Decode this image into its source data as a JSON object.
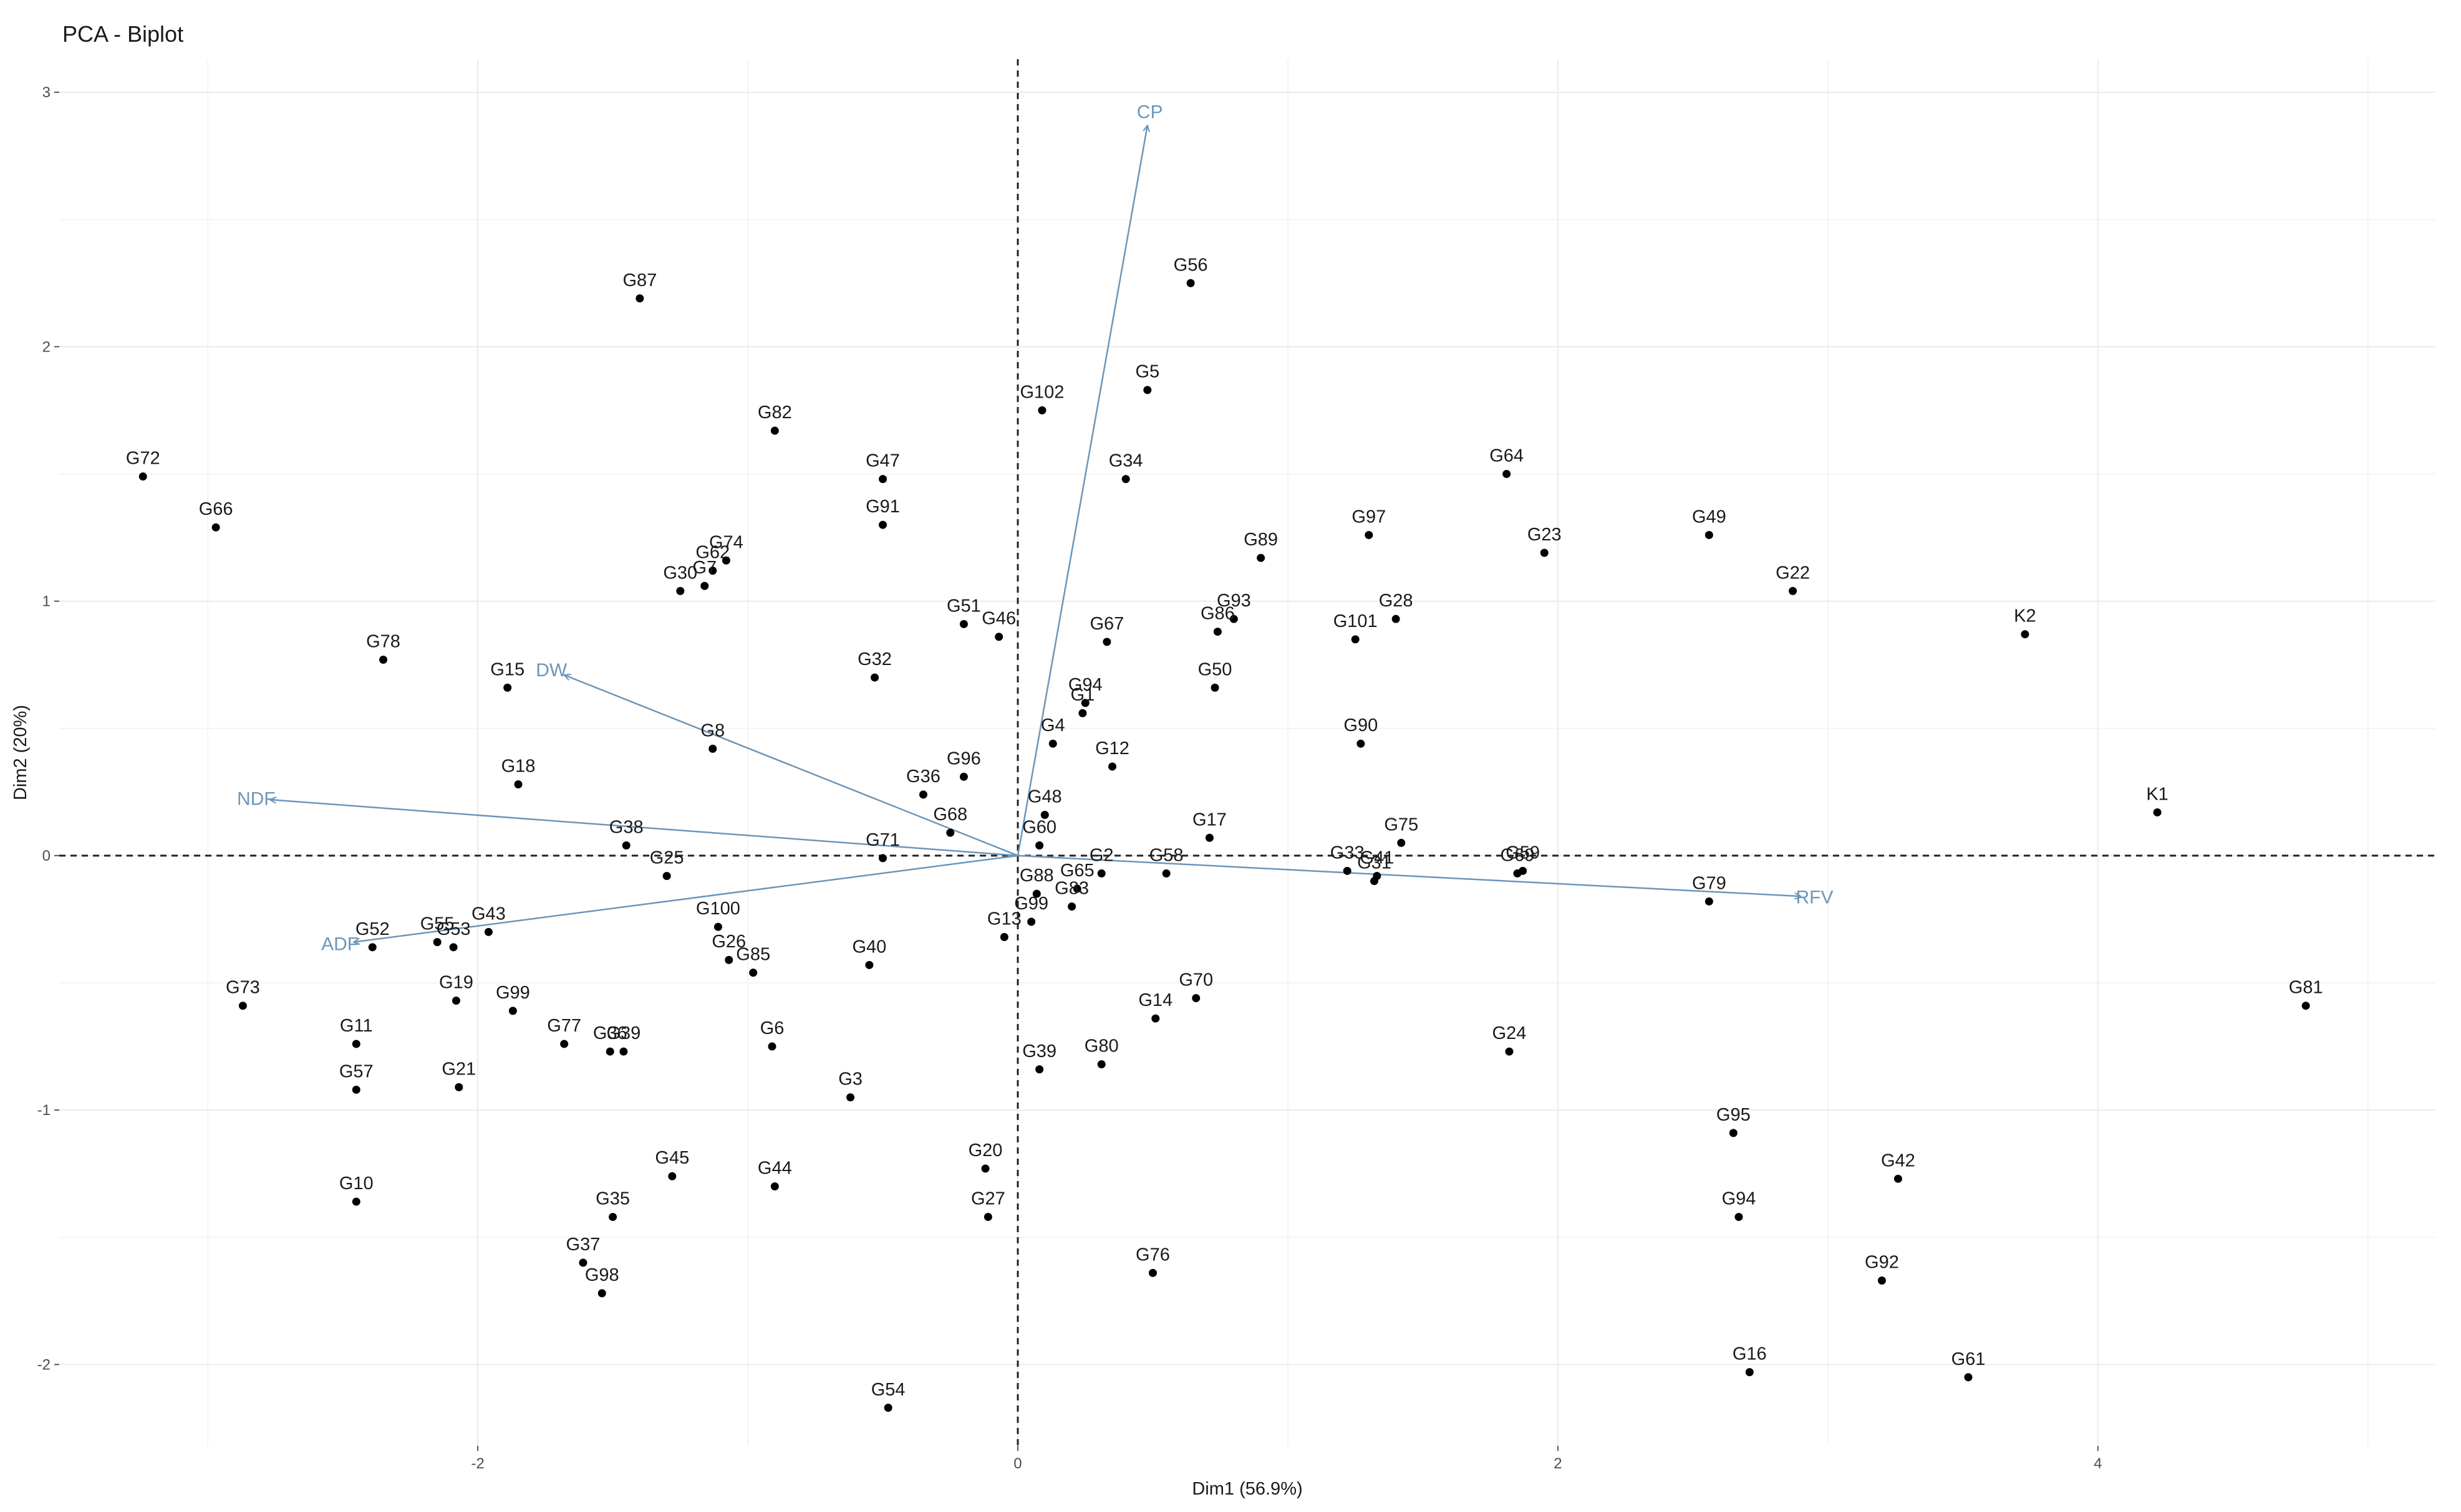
{
  "chart_data": {
    "type": "scatter",
    "title": "PCA - Biplot",
    "xlabel": "Dim1 (56.9%)",
    "ylabel": "Dim2 (20%)",
    "xlim": [
      -3.55,
      5.25
    ],
    "ylim": [
      -2.32,
      3.13
    ],
    "xticks": [
      -2,
      0,
      2,
      4
    ],
    "yticks": [
      -2,
      -1,
      0,
      1,
      2,
      3
    ],
    "grid": true,
    "reference_lines": {
      "x": 0,
      "y": 0,
      "style": "dashed"
    },
    "colors": {
      "points": "#000000",
      "arrows": "#6b96ba",
      "grid": "#ebebeb"
    },
    "points": [
      {
        "label": "G87",
        "x": -1.4,
        "y": 2.19
      },
      {
        "label": "G56",
        "x": 0.64,
        "y": 2.25
      },
      {
        "label": "G102",
        "x": 0.09,
        "y": 1.75
      },
      {
        "label": "G5",
        "x": 0.48,
        "y": 1.83
      },
      {
        "label": "G82",
        "x": -0.9,
        "y": 1.67
      },
      {
        "label": "G72",
        "x": -3.24,
        "y": 1.49
      },
      {
        "label": "G47",
        "x": -0.5,
        "y": 1.48
      },
      {
        "label": "G34",
        "x": 0.4,
        "y": 1.48
      },
      {
        "label": "G64",
        "x": 1.81,
        "y": 1.5
      },
      {
        "label": "G66",
        "x": -2.97,
        "y": 1.29
      },
      {
        "label": "G91",
        "x": -0.5,
        "y": 1.3
      },
      {
        "label": "G97",
        "x": 1.3,
        "y": 1.26
      },
      {
        "label": "G49",
        "x": 2.56,
        "y": 1.26
      },
      {
        "label": "G89",
        "x": 0.9,
        "y": 1.17
      },
      {
        "label": "G23",
        "x": 1.95,
        "y": 1.19
      },
      {
        "label": "G74",
        "x": -1.08,
        "y": 1.16
      },
      {
        "label": "G62",
        "x": -1.13,
        "y": 1.12
      },
      {
        "label": "G7",
        "x": -1.16,
        "y": 1.06
      },
      {
        "label": "G30",
        "x": -1.25,
        "y": 1.04
      },
      {
        "label": "G22",
        "x": 2.87,
        "y": 1.04
      },
      {
        "label": "G93",
        "x": 0.8,
        "y": 0.93
      },
      {
        "label": "G28",
        "x": 1.4,
        "y": 0.93
      },
      {
        "label": "G86",
        "x": 0.74,
        "y": 0.88
      },
      {
        "label": "G101",
        "x": 1.25,
        "y": 0.85
      },
      {
        "label": "G51",
        "x": -0.2,
        "y": 0.91
      },
      {
        "label": "G46",
        "x": -0.07,
        "y": 0.86
      },
      {
        "label": "G67",
        "x": 0.33,
        "y": 0.84
      },
      {
        "label": "K2",
        "x": 3.73,
        "y": 0.87
      },
      {
        "label": "G78",
        "x": -2.35,
        "y": 0.77
      },
      {
        "label": "G32",
        "x": -0.53,
        "y": 0.7
      },
      {
        "label": "G15",
        "x": -1.89,
        "y": 0.66
      },
      {
        "label": "G50",
        "x": 0.73,
        "y": 0.66
      },
      {
        "label": "G94",
        "x": 0.25,
        "y": 0.6
      },
      {
        "label": "G1",
        "x": 0.24,
        "y": 0.56
      },
      {
        "label": "G4",
        "x": 0.13,
        "y": 0.44
      },
      {
        "label": "G90",
        "x": 1.27,
        "y": 0.44
      },
      {
        "label": "G8",
        "x": -1.13,
        "y": 0.42
      },
      {
        "label": "G12",
        "x": 0.35,
        "y": 0.35
      },
      {
        "label": "G96",
        "x": -0.2,
        "y": 0.31
      },
      {
        "label": "G18",
        "x": -1.85,
        "y": 0.28
      },
      {
        "label": "G36",
        "x": -0.35,
        "y": 0.24
      },
      {
        "label": "G48",
        "x": 0.1,
        "y": 0.16
      },
      {
        "label": "K1",
        "x": 4.22,
        "y": 0.17
      },
      {
        "label": "G68",
        "x": -0.25,
        "y": 0.09
      },
      {
        "label": "G60",
        "x": 0.08,
        "y": 0.04
      },
      {
        "label": "G17",
        "x": 0.71,
        "y": 0.07
      },
      {
        "label": "G75",
        "x": 1.42,
        "y": 0.05
      },
      {
        "label": "G38",
        "x": -1.45,
        "y": 0.04
      },
      {
        "label": "G71",
        "x": -0.5,
        "y": -0.01
      },
      {
        "label": "G59",
        "x": 1.87,
        "y": -0.06
      },
      {
        "label": "G69",
        "x": 1.85,
        "y": -0.07
      },
      {
        "label": "G25",
        "x": -1.3,
        "y": -0.08
      },
      {
        "label": "G33",
        "x": 1.22,
        "y": -0.06
      },
      {
        "label": "G41",
        "x": 1.33,
        "y": -0.08
      },
      {
        "label": "G31",
        "x": 1.32,
        "y": -0.1
      },
      {
        "label": "G2",
        "x": 0.31,
        "y": -0.07
      },
      {
        "label": "G58",
        "x": 0.55,
        "y": -0.07
      },
      {
        "label": "G65",
        "x": 0.22,
        "y": -0.13
      },
      {
        "label": "G88",
        "x": 0.07,
        "y": -0.15
      },
      {
        "label": "G83",
        "x": 0.2,
        "y": -0.2
      },
      {
        "label": "G99",
        "x": 0.05,
        "y": -0.26
      },
      {
        "label": "G79",
        "x": 2.56,
        "y": -0.18
      },
      {
        "label": "G13",
        "x": -0.05,
        "y": -0.32
      },
      {
        "label": "G100",
        "x": -1.11,
        "y": -0.28
      },
      {
        "label": "G26",
        "x": -1.07,
        "y": -0.41
      },
      {
        "label": "G85",
        "x": -0.98,
        "y": -0.46
      },
      {
        "label": "G52",
        "x": -2.39,
        "y": -0.36
      },
      {
        "label": "G55",
        "x": -2.15,
        "y": -0.34
      },
      {
        "label": "G53",
        "x": -2.09,
        "y": -0.36
      },
      {
        "label": "G43",
        "x": -1.96,
        "y": -0.3
      },
      {
        "label": "G40",
        "x": -0.55,
        "y": -0.43
      },
      {
        "label": "G73",
        "x": -2.87,
        "y": -0.59
      },
      {
        "label": "G19",
        "x": -2.08,
        "y": -0.57
      },
      {
        "label": "G99",
        "x": -1.87,
        "y": -0.61
      },
      {
        "label": "G70",
        "x": 0.66,
        "y": -0.56
      },
      {
        "label": "G14",
        "x": 0.51,
        "y": -0.64
      },
      {
        "label": "G81",
        "x": 4.77,
        "y": -0.59
      },
      {
        "label": "G11",
        "x": -2.45,
        "y": -0.74
      },
      {
        "label": "G77",
        "x": -1.68,
        "y": -0.74
      },
      {
        "label": "G39",
        "x": -1.46,
        "y": -0.77
      },
      {
        "label": "G36",
        "x": -1.51,
        "y": -0.77
      },
      {
        "label": "G6",
        "x": -0.91,
        "y": -0.75
      },
      {
        "label": "G24",
        "x": 1.82,
        "y": -0.77
      },
      {
        "label": "G39",
        "x": 0.08,
        "y": -0.84
      },
      {
        "label": "G80",
        "x": 0.31,
        "y": -0.82
      },
      {
        "label": "G57",
        "x": -2.45,
        "y": -0.92
      },
      {
        "label": "G21",
        "x": -2.07,
        "y": -0.91
      },
      {
        "label": "G3",
        "x": -0.62,
        "y": -0.95
      },
      {
        "label": "G95",
        "x": 2.65,
        "y": -1.09
      },
      {
        "label": "G20",
        "x": -0.12,
        "y": -1.23
      },
      {
        "label": "G45",
        "x": -1.28,
        "y": -1.26
      },
      {
        "label": "G44",
        "x": -0.9,
        "y": -1.3
      },
      {
        "label": "G42",
        "x": 3.26,
        "y": -1.27
      },
      {
        "label": "G10",
        "x": -2.45,
        "y": -1.36
      },
      {
        "label": "G35",
        "x": -1.5,
        "y": -1.42
      },
      {
        "label": "G27",
        "x": -0.11,
        "y": -1.42
      },
      {
        "label": "G94",
        "x": 2.67,
        "y": -1.42
      },
      {
        "label": "G37",
        "x": -1.61,
        "y": -1.6
      },
      {
        "label": "G76",
        "x": 0.5,
        "y": -1.64
      },
      {
        "label": "G98",
        "x": -1.54,
        "y": -1.72
      },
      {
        "label": "G92",
        "x": 3.2,
        "y": -1.67
      },
      {
        "label": "G16",
        "x": 2.71,
        "y": -2.03
      },
      {
        "label": "G61",
        "x": 3.52,
        "y": -2.05
      },
      {
        "label": "G54",
        "x": -0.48,
        "y": -2.17
      }
    ],
    "arrows": [
      {
        "label": "CP",
        "x": 0.48,
        "y": 2.87
      },
      {
        "label": "DW",
        "x": -1.68,
        "y": 0.71
      },
      {
        "label": "NDF",
        "x": -2.77,
        "y": 0.22
      },
      {
        "label": "ADF",
        "x": -2.46,
        "y": -0.34
      },
      {
        "label": "RFV",
        "x": 2.9,
        "y": -0.16
      }
    ]
  }
}
